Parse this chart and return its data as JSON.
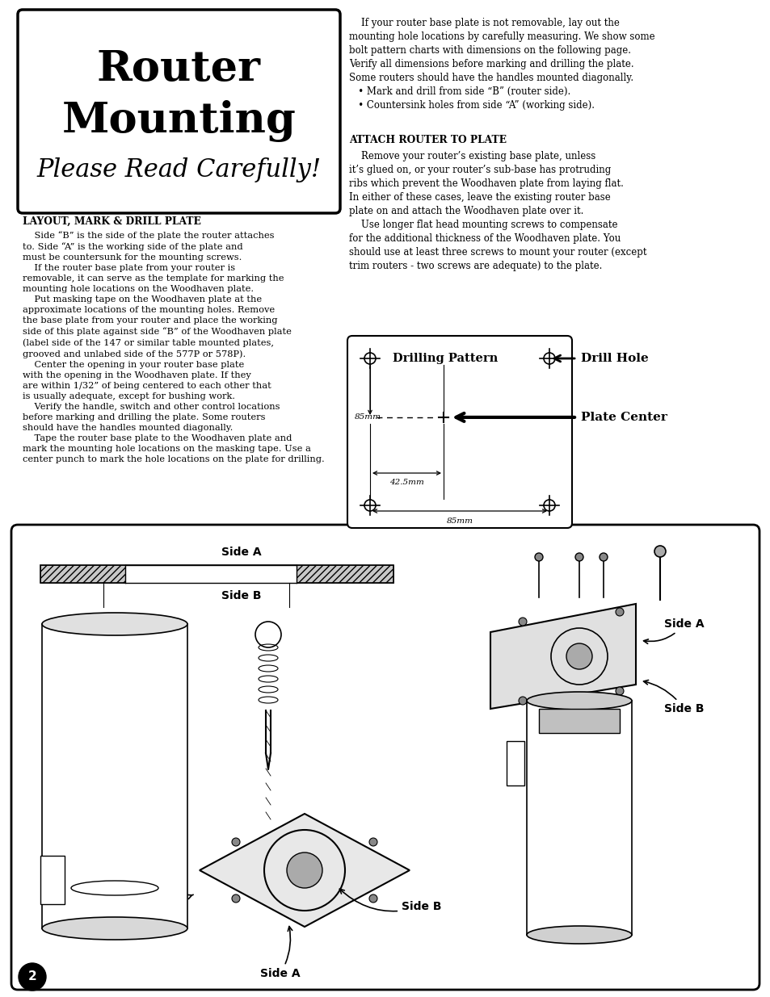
{
  "page_bg": "#ffffff",
  "title1": "Router",
  "title2": "Mounting",
  "title3": "Please Read Carefully!",
  "left_col_header1": "LAYOUT, MARK & DRILL PLATE",
  "left_col_body1": "    Side “B” is the side of the plate the router attaches\nto. Side “A” is the working side of the plate and\nmust be countersunk for the mounting screws.\n    If the router base plate from your router is\nremovable, it can serve as the template for marking the\nmounting hole locations on the Woodhaven plate.\n    Put masking tape on the Woodhaven plate at the\napproximate locations of the mounting holes. Remove\nthe base plate from your router and place the working\nside of this plate against side “B” of the Woodhaven plate\n(label side of the 147 or similar table mounted plates,\ngrooved and unlabed side of the 577P or 578P).\n    Center the opening in your router base plate\nwith the opening in the Woodhaven plate. If they\nare within 1/32” of being centered to each other that\nis usually adequate, except for bushing work.\n    Verify the handle, switch and other control locations\nbefore marking and drilling the plate. Some routers\nshould have the handles mounted diagonally.\n    Tape the router base plate to the Woodhaven plate and\nmark the mounting hole locations on the masking tape. Use a\ncenter punch to mark the hole locations on the plate for drilling.",
  "right_col_body1": "    If your router base plate is not removable, lay out the\nmounting hole locations by carefully measuring. We show some\nbolt pattern charts with dimensions on the following page.\nVerify all dimensions before marking and drilling the plate.\nSome routers should have the handles mounted diagonally.\n   • Mark and drill from side “B” (router side).\n   • Countersink holes from side “A” (working side).",
  "right_col_header2": "ATTACH ROUTER TO PLATE",
  "right_col_body2": "    Remove your router’s existing base plate, unless\nit’s glued on, or your router’s sub-base has protruding\nribs which prevent the Woodhaven plate from laying flat.\nIn either of these cases, leave the existing router base\nplate on and attach the Woodhaven plate over it.\n    Use longer flat head mounting screws to compensate\nfor the additional thickness of the Woodhaven plate. You\nshould use at least three screws to mount your router (except\ntrim routers - two screws are adequate) to the plate.",
  "dp_label": "Drilling Pattern",
  "dh_label": "Drill Hole",
  "pc_label": "Plate Center",
  "dim1": "85mm",
  "dim2": "42.5mm",
  "dim3": "85mm",
  "page_num": "2"
}
